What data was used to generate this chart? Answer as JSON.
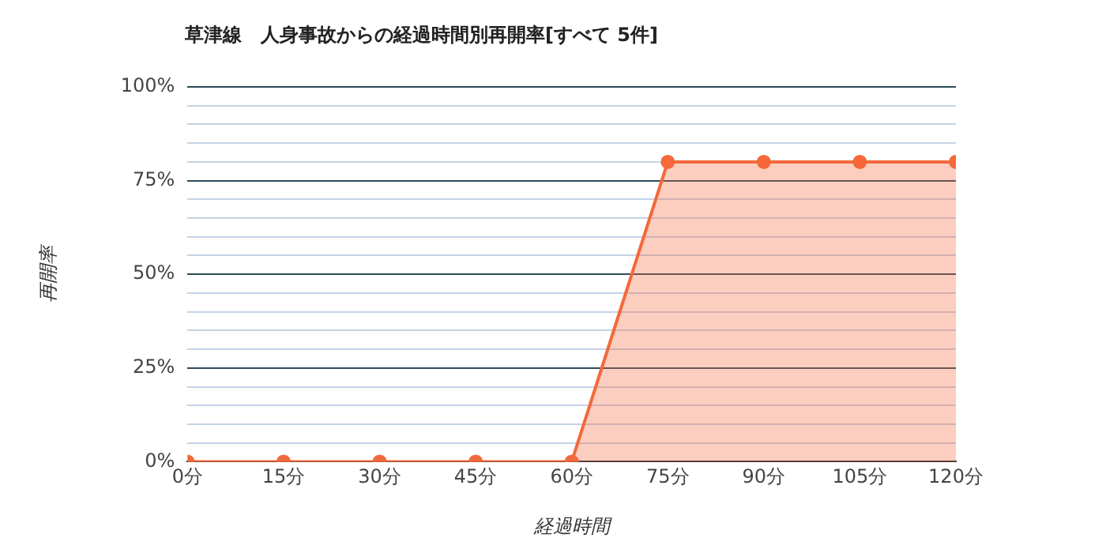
{
  "chart_data": {
    "type": "area",
    "title": "草津線　人身事故からの経過時間別再開率[すべて 5件]",
    "xlabel": "経過時間",
    "ylabel": "再開率",
    "x": [
      0,
      15,
      30,
      45,
      60,
      75,
      90,
      105,
      120
    ],
    "series": [
      {
        "color": "#f4683a",
        "values": [
          0,
          0,
          0,
          0,
          0,
          80,
          80,
          80,
          80
        ]
      }
    ],
    "xlim": [
      0,
      120
    ],
    "xticks": [
      {
        "value": 0,
        "label": "0分"
      },
      {
        "value": 15,
        "label": "15分"
      },
      {
        "value": 30,
        "label": "30分"
      },
      {
        "value": 45,
        "label": "45分"
      },
      {
        "value": 60,
        "label": "60分"
      },
      {
        "value": 75,
        "label": "75分"
      },
      {
        "value": 90,
        "label": "90分"
      },
      {
        "value": 105,
        "label": "105分"
      },
      {
        "value": 120,
        "label": "120分"
      }
    ],
    "ylim": [
      0,
      100
    ],
    "yticks": [
      {
        "value": 0,
        "label": "0%"
      },
      {
        "value": 5,
        "label": null
      },
      {
        "value": 10,
        "label": null
      },
      {
        "value": 15,
        "label": null
      },
      {
        "value": 20,
        "label": null
      },
      {
        "value": 25,
        "label": "25%"
      },
      {
        "value": 30,
        "label": null
      },
      {
        "value": 35,
        "label": null
      },
      {
        "value": 40,
        "label": null
      },
      {
        "value": 45,
        "label": null
      },
      {
        "value": 50,
        "label": "50%"
      },
      {
        "value": 55,
        "label": null
      },
      {
        "value": 60,
        "label": null
      },
      {
        "value": 65,
        "label": null
      },
      {
        "value": 70,
        "label": null
      },
      {
        "value": 75,
        "label": "75%"
      },
      {
        "value": 80,
        "label": null
      },
      {
        "value": 85,
        "label": null
      },
      {
        "value": 90,
        "label": null
      },
      {
        "value": 95,
        "label": null
      },
      {
        "value": 100,
        "label": "100%"
      }
    ],
    "grid": "y",
    "marker": "circle",
    "line_style": "solid",
    "legend": false
  }
}
